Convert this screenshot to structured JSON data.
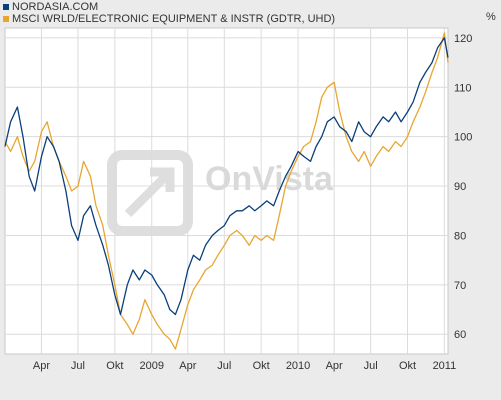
{
  "legend": [
    {
      "label": "NORDASIA.COM",
      "color": "#0b3f7a"
    },
    {
      "label": "MSCI WRLD/ELECTRONIC EQUIPMENT & INSTR (GDTR, UHD)",
      "color": "#e8a630"
    }
  ],
  "y_unit": "%",
  "watermark": "OnVista",
  "chart_data": {
    "type": "line",
    "x_ticks": [
      "Apr",
      "Jul",
      "Okt",
      "2009",
      "Apr",
      "Jul",
      "Okt",
      "2010",
      "Apr",
      "Jul",
      "Okt",
      "2011"
    ],
    "x_range": [
      "2008-01-01",
      "2011-01-10"
    ],
    "y_ticks": [
      60,
      70,
      80,
      90,
      100,
      110,
      120
    ],
    "ylim": [
      56,
      122
    ],
    "grid": true,
    "y_axis_side": "right",
    "series": [
      {
        "name": "NORDASIA.COM",
        "color": "#0b3f7a",
        "points": [
          [
            "2008-01-01",
            98
          ],
          [
            "2008-01-15",
            103
          ],
          [
            "2008-02-01",
            106
          ],
          [
            "2008-02-15",
            100
          ],
          [
            "2008-03-01",
            92
          ],
          [
            "2008-03-15",
            89
          ],
          [
            "2008-04-01",
            96
          ],
          [
            "2008-04-15",
            100
          ],
          [
            "2008-05-01",
            98
          ],
          [
            "2008-05-15",
            95
          ],
          [
            "2008-06-01",
            89
          ],
          [
            "2008-06-15",
            82
          ],
          [
            "2008-07-01",
            79
          ],
          [
            "2008-07-15",
            84
          ],
          [
            "2008-08-01",
            86
          ],
          [
            "2008-08-15",
            82
          ],
          [
            "2008-09-01",
            78
          ],
          [
            "2008-09-15",
            74
          ],
          [
            "2008-10-01",
            68
          ],
          [
            "2008-10-15",
            64
          ],
          [
            "2008-11-01",
            70
          ],
          [
            "2008-11-15",
            73
          ],
          [
            "2008-12-01",
            71
          ],
          [
            "2008-12-15",
            73
          ],
          [
            "2009-01-01",
            72
          ],
          [
            "2009-01-15",
            70
          ],
          [
            "2009-02-01",
            68
          ],
          [
            "2009-02-15",
            65
          ],
          [
            "2009-03-01",
            64
          ],
          [
            "2009-03-15",
            67
          ],
          [
            "2009-04-01",
            73
          ],
          [
            "2009-04-15",
            76
          ],
          [
            "2009-05-01",
            75
          ],
          [
            "2009-05-15",
            78
          ],
          [
            "2009-06-01",
            80
          ],
          [
            "2009-06-15",
            81
          ],
          [
            "2009-07-01",
            82
          ],
          [
            "2009-07-15",
            84
          ],
          [
            "2009-08-01",
            85
          ],
          [
            "2009-08-15",
            85
          ],
          [
            "2009-09-01",
            86
          ],
          [
            "2009-09-15",
            85
          ],
          [
            "2009-10-01",
            86
          ],
          [
            "2009-10-15",
            87
          ],
          [
            "2009-11-01",
            86
          ],
          [
            "2009-11-15",
            89
          ],
          [
            "2009-12-01",
            92
          ],
          [
            "2009-12-15",
            94
          ],
          [
            "2010-01-01",
            97
          ],
          [
            "2010-01-15",
            96
          ],
          [
            "2010-02-01",
            95
          ],
          [
            "2010-02-15",
            98
          ],
          [
            "2010-03-01",
            100
          ],
          [
            "2010-03-15",
            103
          ],
          [
            "2010-04-01",
            104
          ],
          [
            "2010-04-15",
            102
          ],
          [
            "2010-05-01",
            101
          ],
          [
            "2010-05-15",
            99
          ],
          [
            "2010-06-01",
            103
          ],
          [
            "2010-06-15",
            101
          ],
          [
            "2010-07-01",
            100
          ],
          [
            "2010-07-15",
            102
          ],
          [
            "2010-08-01",
            104
          ],
          [
            "2010-08-15",
            103
          ],
          [
            "2010-09-01",
            105
          ],
          [
            "2010-09-15",
            103
          ],
          [
            "2010-10-01",
            105
          ],
          [
            "2010-10-15",
            107
          ],
          [
            "2010-11-01",
            111
          ],
          [
            "2010-11-15",
            113
          ],
          [
            "2010-12-01",
            115
          ],
          [
            "2010-12-15",
            118
          ],
          [
            "2011-01-01",
            120
          ],
          [
            "2011-01-10",
            116
          ]
        ]
      },
      {
        "name": "MSCI WRLD/ELECTRONIC EQUIPMENT & INSTR (GDTR, UHD)",
        "color": "#e8a630",
        "points": [
          [
            "2008-01-01",
            99
          ],
          [
            "2008-01-15",
            97
          ],
          [
            "2008-02-01",
            100
          ],
          [
            "2008-02-15",
            96
          ],
          [
            "2008-03-01",
            93
          ],
          [
            "2008-03-15",
            95
          ],
          [
            "2008-04-01",
            101
          ],
          [
            "2008-04-15",
            103
          ],
          [
            "2008-05-01",
            98
          ],
          [
            "2008-05-15",
            95
          ],
          [
            "2008-06-01",
            92
          ],
          [
            "2008-06-15",
            89
          ],
          [
            "2008-07-01",
            90
          ],
          [
            "2008-07-15",
            95
          ],
          [
            "2008-08-01",
            92
          ],
          [
            "2008-08-15",
            86
          ],
          [
            "2008-09-01",
            82
          ],
          [
            "2008-09-15",
            76
          ],
          [
            "2008-10-01",
            70
          ],
          [
            "2008-10-15",
            64
          ],
          [
            "2008-11-01",
            62
          ],
          [
            "2008-11-15",
            60
          ],
          [
            "2008-12-01",
            63
          ],
          [
            "2008-12-15",
            67
          ],
          [
            "2009-01-01",
            64
          ],
          [
            "2009-01-15",
            62
          ],
          [
            "2009-02-01",
            60
          ],
          [
            "2009-02-15",
            59
          ],
          [
            "2009-03-01",
            57
          ],
          [
            "2009-03-15",
            61
          ],
          [
            "2009-04-01",
            66
          ],
          [
            "2009-04-15",
            69
          ],
          [
            "2009-05-01",
            71
          ],
          [
            "2009-05-15",
            73
          ],
          [
            "2009-06-01",
            74
          ],
          [
            "2009-06-15",
            76
          ],
          [
            "2009-07-01",
            78
          ],
          [
            "2009-07-15",
            80
          ],
          [
            "2009-08-01",
            81
          ],
          [
            "2009-08-15",
            80
          ],
          [
            "2009-09-01",
            78
          ],
          [
            "2009-09-15",
            80
          ],
          [
            "2009-10-01",
            79
          ],
          [
            "2009-10-15",
            80
          ],
          [
            "2009-11-01",
            79
          ],
          [
            "2009-11-15",
            84
          ],
          [
            "2009-12-01",
            90
          ],
          [
            "2009-12-15",
            93
          ],
          [
            "2010-01-01",
            96
          ],
          [
            "2010-01-15",
            98
          ],
          [
            "2010-02-01",
            99
          ],
          [
            "2010-02-15",
            103
          ],
          [
            "2010-03-01",
            108
          ],
          [
            "2010-03-15",
            110
          ],
          [
            "2010-04-01",
            111
          ],
          [
            "2010-04-15",
            105
          ],
          [
            "2010-05-01",
            100
          ],
          [
            "2010-05-15",
            97
          ],
          [
            "2010-06-01",
            95
          ],
          [
            "2010-06-15",
            97
          ],
          [
            "2010-07-01",
            94
          ],
          [
            "2010-07-15",
            96
          ],
          [
            "2010-08-01",
            98
          ],
          [
            "2010-08-15",
            97
          ],
          [
            "2010-09-01",
            99
          ],
          [
            "2010-09-15",
            98
          ],
          [
            "2010-10-01",
            100
          ],
          [
            "2010-10-15",
            103
          ],
          [
            "2010-11-01",
            106
          ],
          [
            "2010-11-15",
            109
          ],
          [
            "2010-12-01",
            113
          ],
          [
            "2010-12-15",
            116
          ],
          [
            "2011-01-01",
            121
          ],
          [
            "2011-01-10",
            115
          ]
        ]
      }
    ]
  }
}
